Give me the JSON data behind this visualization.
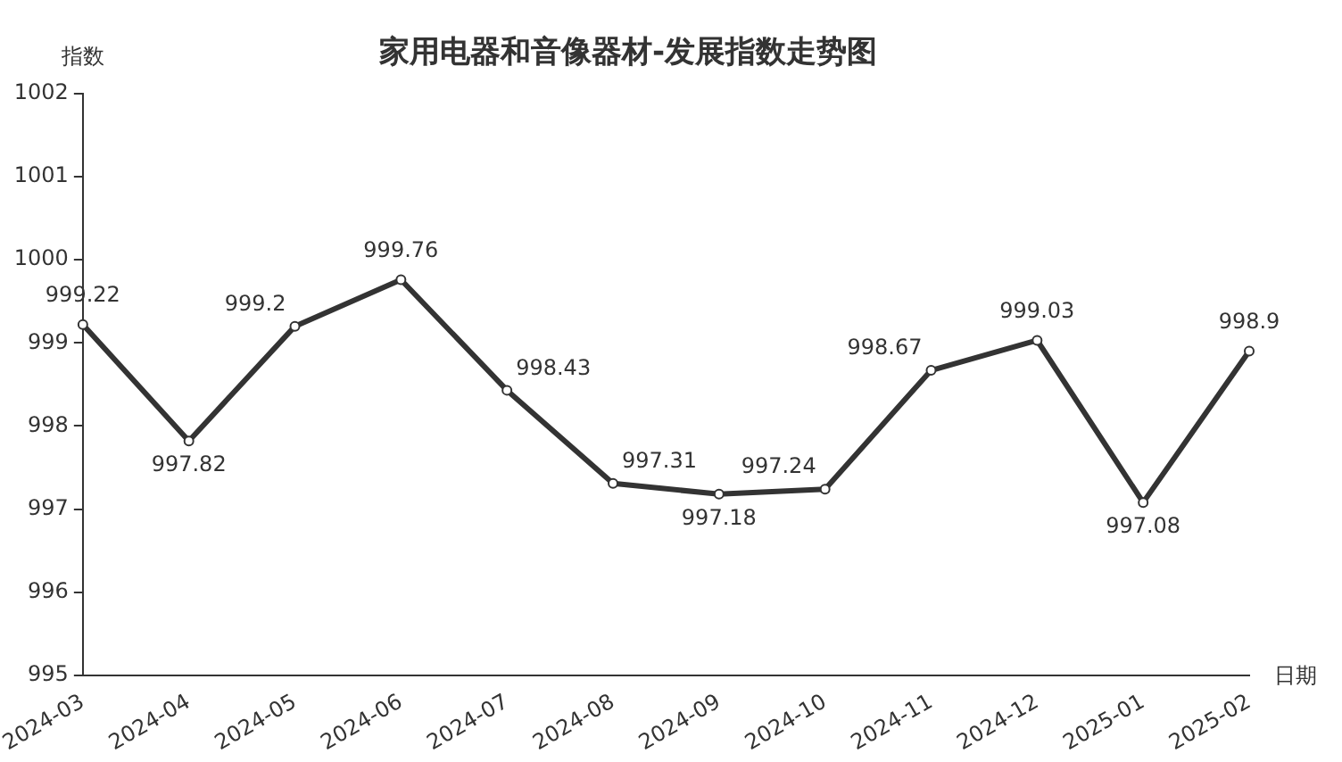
{
  "chart_data": {
    "type": "line",
    "title": "家用电器和音像器材-发展指数走势图",
    "xlabel": "日期",
    "ylabel": "指数",
    "categories": [
      "2024-03",
      "2024-04",
      "2024-05",
      "2024-06",
      "2024-07",
      "2024-08",
      "2024-09",
      "2024-10",
      "2024-11",
      "2024-12",
      "2025-01",
      "2025-02"
    ],
    "series": [
      {
        "color": "#333333",
        "values": [
          999.22,
          997.82,
          999.2,
          999.76,
          998.43,
          997.31,
          997.18,
          997.24,
          998.67,
          999.03,
          997.08,
          998.9
        ]
      }
    ],
    "ylim": [
      995,
      1002
    ],
    "yticks": [
      995,
      996,
      997,
      998,
      999,
      1000,
      1001,
      1002
    ],
    "grid": false,
    "legend": false,
    "marker": "circle",
    "line_style": "solid",
    "data_labels": true
  }
}
